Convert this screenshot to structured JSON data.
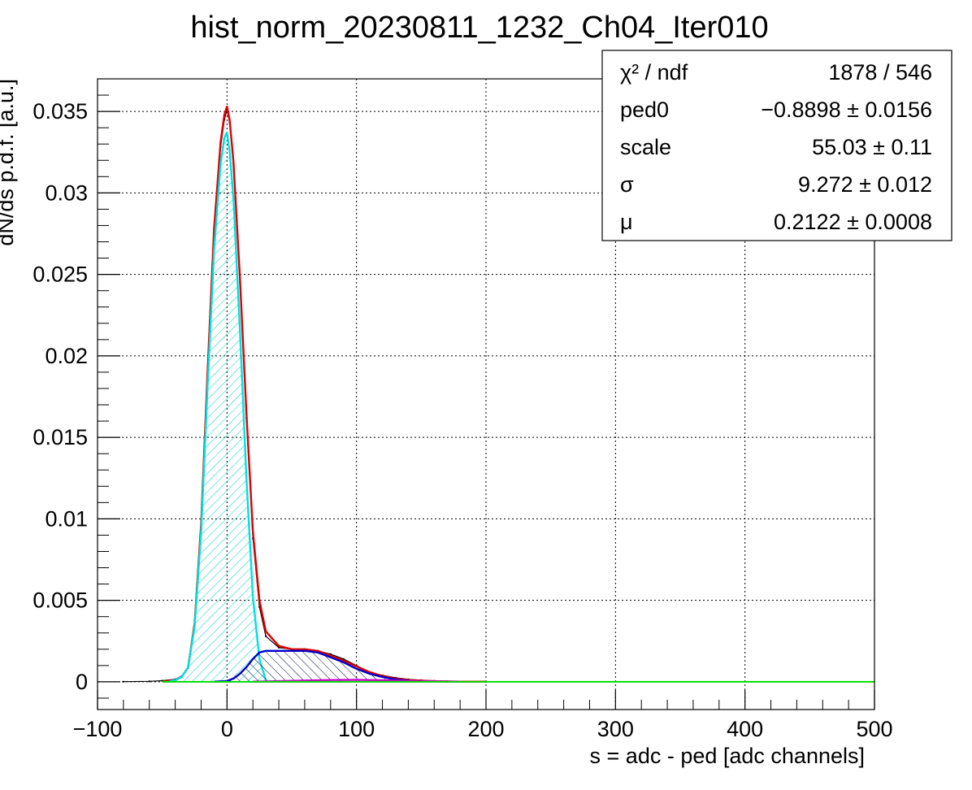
{
  "chart_data": {
    "type": "line",
    "title": "hist_norm_20230811_1232_Ch04_Iter010",
    "xlabel": "s = adc - ped [adc channels]",
    "ylabel": "dN/ds p.d.f. [a.u.]",
    "xlim": [
      -100,
      500
    ],
    "ylim": [
      -0.0017,
      0.037
    ],
    "grid": true,
    "x_ticks": [
      {
        "value": -100,
        "label": "−100"
      },
      {
        "value": 0,
        "label": "0"
      },
      {
        "value": 100,
        "label": "100"
      },
      {
        "value": 200,
        "label": "200"
      },
      {
        "value": 300,
        "label": "300"
      },
      {
        "value": 400,
        "label": "400"
      },
      {
        "value": 500,
        "label": "500"
      }
    ],
    "y_ticks": [
      {
        "value": 0,
        "label": "0"
      },
      {
        "value": 0.005,
        "label": "0.005"
      },
      {
        "value": 0.01,
        "label": "0.01"
      },
      {
        "value": 0.015,
        "label": "0.015"
      },
      {
        "value": 0.02,
        "label": "0.02"
      },
      {
        "value": 0.025,
        "label": "0.025"
      },
      {
        "value": 0.03,
        "label": "0.03"
      },
      {
        "value": 0.035,
        "label": "0.035"
      }
    ],
    "stats_box": {
      "rows": [
        {
          "label": "χ² / ndf",
          "value": "1878 / 546"
        },
        {
          "label": "ped0",
          "value": "−0.8898 ± 0.0156"
        },
        {
          "label": "scale",
          "value": "55.03 ± 0.11"
        },
        {
          "label": "σ",
          "value": "9.272 ± 0.012"
        },
        {
          "label": "μ",
          "value": "0.2122 ± 0.0008"
        }
      ]
    },
    "series": [
      {
        "color": "#000000",
        "kind": "histogram",
        "x": [
          -80,
          -60,
          -50,
          -40,
          -35,
          -30,
          -25,
          -20,
          -15,
          -10,
          -5,
          -2,
          0,
          2,
          5,
          10,
          15,
          20,
          25,
          30,
          40,
          50,
          60,
          70,
          80,
          90,
          100,
          110,
          120,
          130,
          140,
          150,
          160,
          170,
          180,
          190,
          200
        ],
        "y": [
          1e-05,
          3e-05,
          7e-05,
          0.00015,
          0.00035,
          0.00085,
          0.0035,
          0.0096,
          0.0188,
          0.0275,
          0.0328,
          0.0345,
          0.0351,
          0.0343,
          0.0318,
          0.0245,
          0.0162,
          0.0088,
          0.0046,
          0.0028,
          0.0021,
          0.002,
          0.002,
          0.0019,
          0.0017,
          0.0014,
          0.001,
          0.0006,
          0.0004,
          0.00025,
          0.00015,
          0.0001,
          6e-05,
          4e-05,
          2e-05,
          1e-05,
          1e-05
        ]
      },
      {
        "color": "#e00000",
        "kind": "total-fit",
        "x": [
          -50,
          -40,
          -35,
          -30,
          -25,
          -20,
          -15,
          -10,
          -5,
          -2,
          0,
          2,
          5,
          10,
          15,
          20,
          25,
          30,
          40,
          50,
          60,
          70,
          80,
          90,
          100,
          110,
          120,
          130,
          140,
          150,
          160,
          170,
          180,
          190,
          200
        ],
        "y": [
          1e-05,
          0.0001,
          0.0003,
          0.0009,
          0.0036,
          0.0097,
          0.019,
          0.0278,
          0.0331,
          0.0348,
          0.0353,
          0.0345,
          0.0319,
          0.0247,
          0.0165,
          0.0092,
          0.005,
          0.0031,
          0.0022,
          0.002,
          0.002,
          0.0019,
          0.0016,
          0.0013,
          0.00095,
          0.0006,
          0.00036,
          0.0002,
          0.00011,
          7e-05,
          4e-05,
          2e-05,
          1e-05,
          1e-05,
          1e-05
        ]
      },
      {
        "color": "#00e0e0",
        "kind": "pedestal-component",
        "hatched": true,
        "x": [
          -45,
          -40,
          -35,
          -30,
          -25,
          -20,
          -15,
          -10,
          -5,
          -2,
          0,
          2,
          5,
          10,
          15,
          20,
          25,
          30
        ],
        "y": [
          2e-05,
          0.0001,
          0.0003,
          0.0009,
          0.0034,
          0.0092,
          0.0181,
          0.0265,
          0.0318,
          0.0334,
          0.0337,
          0.0326,
          0.0296,
          0.0215,
          0.0125,
          0.0052,
          0.0014,
          0.0001
        ]
      },
      {
        "color": "#0000cc",
        "kind": "first-photoelectron-component",
        "hatched": true,
        "x": [
          -10,
          0,
          5,
          10,
          15,
          20,
          25,
          30,
          40,
          50,
          60,
          70,
          80,
          90,
          100,
          110,
          120,
          130,
          140,
          150
        ],
        "y": [
          1e-05,
          5e-05,
          0.0002,
          0.0005,
          0.0009,
          0.0014,
          0.0018,
          0.0019,
          0.0019,
          0.0019,
          0.0019,
          0.0018,
          0.0015,
          0.0012,
          0.0008,
          0.0005,
          0.0003,
          0.00015,
          7e-05,
          3e-05
        ]
      },
      {
        "color": "#cc00cc",
        "kind": "second-photoelectron-component",
        "x": [
          20,
          40,
          60,
          80,
          100,
          120,
          140,
          160,
          180
        ],
        "y": [
          1e-05,
          4e-05,
          8e-05,
          0.00011,
          0.00012,
          0.0001,
          6e-05,
          3e-05,
          1e-05
        ]
      },
      {
        "color": "#00dd00",
        "kind": "background",
        "x": [
          -50,
          500
        ],
        "y": [
          0,
          0
        ]
      }
    ]
  }
}
